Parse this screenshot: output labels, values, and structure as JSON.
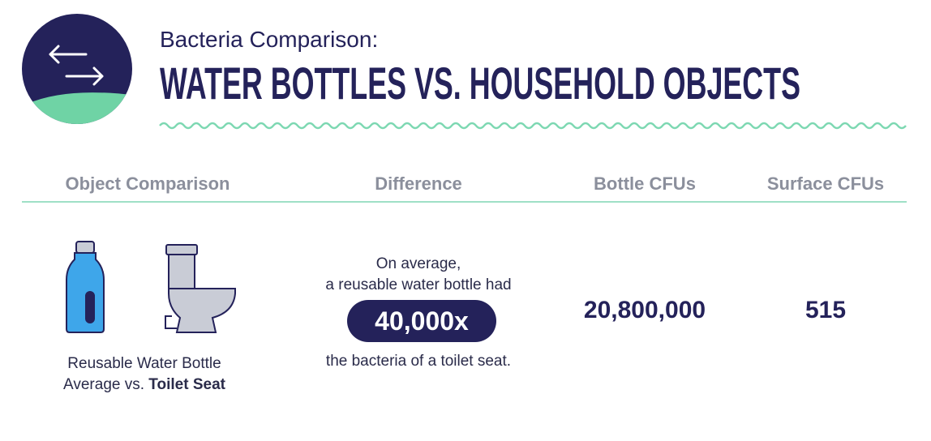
{
  "header": {
    "subtitle": "Bacteria Comparison:",
    "title": "WATER BOTTLES VS. HOUSEHOLD OBJECTS"
  },
  "table": {
    "columns": [
      "Object Comparison",
      "Difference",
      "Bottle CFUs",
      "Surface CFUs"
    ],
    "rows": [
      {
        "object": [
          "Reusable Water Bottle",
          "Average vs.",
          "Toilet Seat"
        ],
        "difference": [
          "On average,",
          "a reusable water bottle had",
          "40,000x",
          "the bacteria of a toilet seat."
        ],
        "bottle_cfus": "20,800,000",
        "surface_cfus": "515"
      }
    ]
  }
}
